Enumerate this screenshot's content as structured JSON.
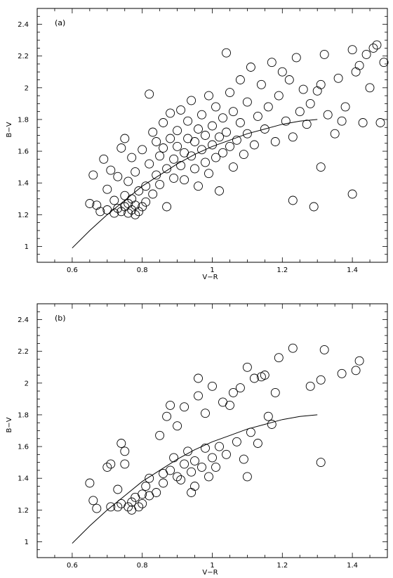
{
  "chart_data": [
    {
      "type": "scatter",
      "panel_label": "(a)",
      "xlabel": "V−R",
      "ylabel": "B−V",
      "xlim": [
        0.5,
        1.5
      ],
      "ylim": [
        0.9,
        2.5
      ],
      "xticks": [
        0.6,
        0.8,
        1.0,
        1.2,
        1.4
      ],
      "xtick_labels": [
        "0.6",
        "0.8",
        "1",
        "1.2",
        "1.4"
      ],
      "yticks": [
        1.0,
        1.2,
        1.4,
        1.6,
        1.8,
        2.0,
        2.2,
        2.4
      ],
      "ytick_labels": [
        "1",
        "1.2",
        "1.4",
        "1.6",
        "1.8",
        "2",
        "2.2",
        "2.4"
      ],
      "grid": false,
      "marker": "open-circle",
      "curve": {
        "x": [
          0.6,
          0.65,
          0.7,
          0.75,
          0.8,
          0.85,
          0.9,
          0.95,
          1.0,
          1.05,
          1.1,
          1.15,
          1.2,
          1.25,
          1.3
        ],
        "y": [
          0.99,
          1.1,
          1.2,
          1.29,
          1.38,
          1.45,
          1.52,
          1.58,
          1.63,
          1.67,
          1.71,
          1.74,
          1.77,
          1.79,
          1.8
        ]
      },
      "points": [
        [
          0.65,
          1.27
        ],
        [
          0.66,
          1.45
        ],
        [
          0.67,
          1.26
        ],
        [
          0.68,
          1.22
        ],
        [
          0.69,
          1.55
        ],
        [
          0.7,
          1.23
        ],
        [
          0.7,
          1.36
        ],
        [
          0.71,
          1.48
        ],
        [
          0.72,
          1.21
        ],
        [
          0.72,
          1.29
        ],
        [
          0.73,
          1.24
        ],
        [
          0.73,
          1.44
        ],
        [
          0.74,
          1.22
        ],
        [
          0.74,
          1.62
        ],
        [
          0.75,
          1.25
        ],
        [
          0.75,
          1.32
        ],
        [
          0.75,
          1.68
        ],
        [
          0.76,
          1.21
        ],
        [
          0.76,
          1.27
        ],
        [
          0.76,
          1.41
        ],
        [
          0.77,
          1.23
        ],
        [
          0.77,
          1.3
        ],
        [
          0.77,
          1.56
        ],
        [
          0.78,
          1.2
        ],
        [
          0.78,
          1.26
        ],
        [
          0.78,
          1.47
        ],
        [
          0.79,
          1.22
        ],
        [
          0.79,
          1.35
        ],
        [
          0.8,
          1.25
        ],
        [
          0.8,
          1.61
        ],
        [
          0.81,
          1.28
        ],
        [
          0.81,
          1.38
        ],
        [
          0.82,
          1.96
        ],
        [
          0.82,
          1.52
        ],
        [
          0.83,
          1.33
        ],
        [
          0.83,
          1.72
        ],
        [
          0.84,
          1.45
        ],
        [
          0.84,
          1.66
        ],
        [
          0.85,
          1.57
        ],
        [
          0.85,
          1.39
        ],
        [
          0.86,
          1.62
        ],
        [
          0.86,
          1.78
        ],
        [
          0.87,
          1.49
        ],
        [
          0.87,
          1.25
        ],
        [
          0.88,
          1.68
        ],
        [
          0.88,
          1.84
        ],
        [
          0.89,
          1.55
        ],
        [
          0.89,
          1.43
        ],
        [
          0.9,
          1.73
        ],
        [
          0.9,
          1.63
        ],
        [
          0.91,
          1.51
        ],
        [
          0.91,
          1.86
        ],
        [
          0.92,
          1.59
        ],
        [
          0.92,
          1.42
        ],
        [
          0.93,
          1.68
        ],
        [
          0.93,
          1.79
        ],
        [
          0.94,
          1.57
        ],
        [
          0.94,
          1.92
        ],
        [
          0.95,
          1.49
        ],
        [
          0.95,
          1.66
        ],
        [
          0.96,
          1.74
        ],
        [
          0.96,
          1.38
        ],
        [
          0.97,
          1.61
        ],
        [
          0.97,
          1.83
        ],
        [
          0.98,
          1.53
        ],
        [
          0.98,
          1.7
        ],
        [
          0.99,
          1.95
        ],
        [
          0.99,
          1.46
        ],
        [
          1.0,
          1.64
        ],
        [
          1.0,
          1.76
        ],
        [
          1.01,
          1.56
        ],
        [
          1.01,
          1.88
        ],
        [
          1.02,
          1.69
        ],
        [
          1.02,
          1.35
        ],
        [
          1.03,
          1.81
        ],
        [
          1.03,
          1.59
        ],
        [
          1.04,
          2.22
        ],
        [
          1.04,
          1.72
        ],
        [
          1.05,
          1.63
        ],
        [
          1.05,
          1.97
        ],
        [
          1.06,
          1.5
        ],
        [
          1.06,
          1.85
        ],
        [
          1.07,
          1.67
        ],
        [
          1.08,
          1.78
        ],
        [
          1.08,
          2.05
        ],
        [
          1.09,
          1.58
        ],
        [
          1.1,
          1.91
        ],
        [
          1.1,
          1.71
        ],
        [
          1.11,
          2.13
        ],
        [
          1.12,
          1.64
        ],
        [
          1.13,
          1.82
        ],
        [
          1.14,
          2.02
        ],
        [
          1.15,
          1.74
        ],
        [
          1.16,
          1.88
        ],
        [
          1.17,
          2.16
        ],
        [
          1.18,
          1.66
        ],
        [
          1.19,
          1.95
        ],
        [
          1.2,
          2.1
        ],
        [
          1.21,
          1.79
        ],
        [
          1.22,
          2.05
        ],
        [
          1.23,
          1.69
        ],
        [
          1.23,
          1.29
        ],
        [
          1.24,
          2.19
        ],
        [
          1.25,
          1.85
        ],
        [
          1.26,
          1.99
        ],
        [
          1.27,
          1.77
        ],
        [
          1.28,
          1.9
        ],
        [
          1.29,
          1.25
        ],
        [
          1.3,
          1.98
        ],
        [
          1.31,
          1.5
        ],
        [
          1.31,
          2.02
        ],
        [
          1.32,
          2.21
        ],
        [
          1.33,
          1.83
        ],
        [
          1.35,
          1.71
        ],
        [
          1.36,
          2.06
        ],
        [
          1.37,
          1.79
        ],
        [
          1.38,
          1.88
        ],
        [
          1.4,
          2.24
        ],
        [
          1.4,
          1.33
        ],
        [
          1.41,
          2.1
        ],
        [
          1.42,
          2.14
        ],
        [
          1.43,
          1.78
        ],
        [
          1.44,
          2.21
        ],
        [
          1.45,
          2.0
        ],
        [
          1.46,
          2.25
        ],
        [
          1.47,
          2.27
        ],
        [
          1.48,
          1.78
        ],
        [
          1.49,
          2.16
        ]
      ]
    },
    {
      "type": "scatter",
      "panel_label": "(b)",
      "xlabel": "V−R",
      "ylabel": "B−V",
      "xlim": [
        0.5,
        1.5
      ],
      "ylim": [
        0.9,
        2.5
      ],
      "xticks": [
        0.6,
        0.8,
        1.0,
        1.2,
        1.4
      ],
      "xtick_labels": [
        "0.6",
        "0.8",
        "1",
        "1.2",
        "1.4"
      ],
      "yticks": [
        1.0,
        1.2,
        1.4,
        1.6,
        1.8,
        2.0,
        2.2,
        2.4
      ],
      "ytick_labels": [
        "1",
        "1.2",
        "1.4",
        "1.6",
        "1.8",
        "2",
        "2.2",
        "2.4"
      ],
      "grid": false,
      "marker": "open-circle",
      "curve": {
        "x": [
          0.6,
          0.65,
          0.7,
          0.75,
          0.8,
          0.85,
          0.9,
          0.95,
          1.0,
          1.05,
          1.1,
          1.15,
          1.2,
          1.25,
          1.3
        ],
        "y": [
          0.99,
          1.1,
          1.2,
          1.29,
          1.38,
          1.45,
          1.52,
          1.58,
          1.63,
          1.67,
          1.71,
          1.74,
          1.77,
          1.79,
          1.8
        ]
      },
      "points": [
        [
          0.65,
          1.37
        ],
        [
          0.66,
          1.26
        ],
        [
          0.67,
          1.21
        ],
        [
          0.7,
          1.47
        ],
        [
          0.71,
          1.49
        ],
        [
          0.71,
          1.22
        ],
        [
          0.73,
          1.33
        ],
        [
          0.73,
          1.22
        ],
        [
          0.74,
          1.24
        ],
        [
          0.74,
          1.62
        ],
        [
          0.75,
          1.57
        ],
        [
          0.75,
          1.49
        ],
        [
          0.76,
          1.22
        ],
        [
          0.77,
          1.25
        ],
        [
          0.77,
          1.2
        ],
        [
          0.78,
          1.28
        ],
        [
          0.79,
          1.22
        ],
        [
          0.8,
          1.3
        ],
        [
          0.8,
          1.24
        ],
        [
          0.81,
          1.35
        ],
        [
          0.82,
          1.29
        ],
        [
          0.82,
          1.4
        ],
        [
          0.84,
          1.31
        ],
        [
          0.85,
          1.67
        ],
        [
          0.86,
          1.43
        ],
        [
          0.86,
          1.37
        ],
        [
          0.87,
          1.79
        ],
        [
          0.88,
          1.86
        ],
        [
          0.88,
          1.45
        ],
        [
          0.89,
          1.53
        ],
        [
          0.9,
          1.41
        ],
        [
          0.9,
          1.73
        ],
        [
          0.91,
          1.39
        ],
        [
          0.92,
          1.85
        ],
        [
          0.92,
          1.49
        ],
        [
          0.93,
          1.57
        ],
        [
          0.94,
          1.31
        ],
        [
          0.94,
          1.44
        ],
        [
          0.95,
          1.35
        ],
        [
          0.95,
          1.51
        ],
        [
          0.96,
          1.92
        ],
        [
          0.96,
          2.03
        ],
        [
          0.97,
          1.47
        ],
        [
          0.98,
          1.59
        ],
        [
          0.98,
          1.81
        ],
        [
          0.99,
          1.41
        ],
        [
          1.0,
          1.98
        ],
        [
          1.0,
          1.53
        ],
        [
          1.01,
          1.47
        ],
        [
          1.02,
          1.6
        ],
        [
          1.03,
          1.88
        ],
        [
          1.04,
          1.55
        ],
        [
          1.05,
          1.86
        ],
        [
          1.06,
          1.94
        ],
        [
          1.07,
          1.63
        ],
        [
          1.08,
          1.97
        ],
        [
          1.09,
          1.52
        ],
        [
          1.1,
          2.1
        ],
        [
          1.1,
          1.41
        ],
        [
          1.11,
          1.69
        ],
        [
          1.12,
          2.03
        ],
        [
          1.13,
          1.62
        ],
        [
          1.14,
          2.04
        ],
        [
          1.15,
          2.05
        ],
        [
          1.16,
          1.79
        ],
        [
          1.17,
          1.74
        ],
        [
          1.18,
          1.94
        ],
        [
          1.19,
          2.16
        ],
        [
          1.23,
          2.22
        ],
        [
          1.28,
          1.98
        ],
        [
          1.31,
          2.02
        ],
        [
          1.31,
          1.5
        ],
        [
          1.32,
          2.21
        ],
        [
          1.37,
          2.06
        ],
        [
          1.41,
          2.08
        ],
        [
          1.42,
          2.14
        ]
      ]
    }
  ]
}
